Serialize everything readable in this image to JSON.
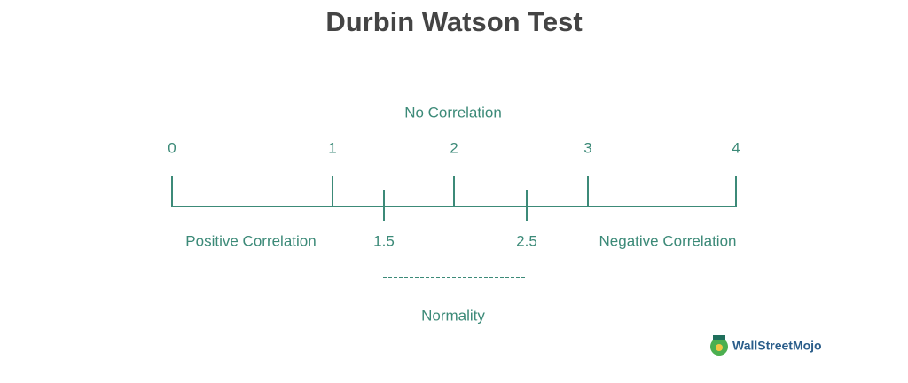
{
  "title": "Durbin Watson Test",
  "top_label": "No Correlation",
  "scale": {
    "major": [
      0,
      1,
      2,
      3,
      4
    ],
    "minor": [
      1.5,
      2.5
    ]
  },
  "regions": [
    "Positive Correlation",
    "Negative Correlation"
  ],
  "range_label": "Normality",
  "logo": "WallStreetMojo"
}
